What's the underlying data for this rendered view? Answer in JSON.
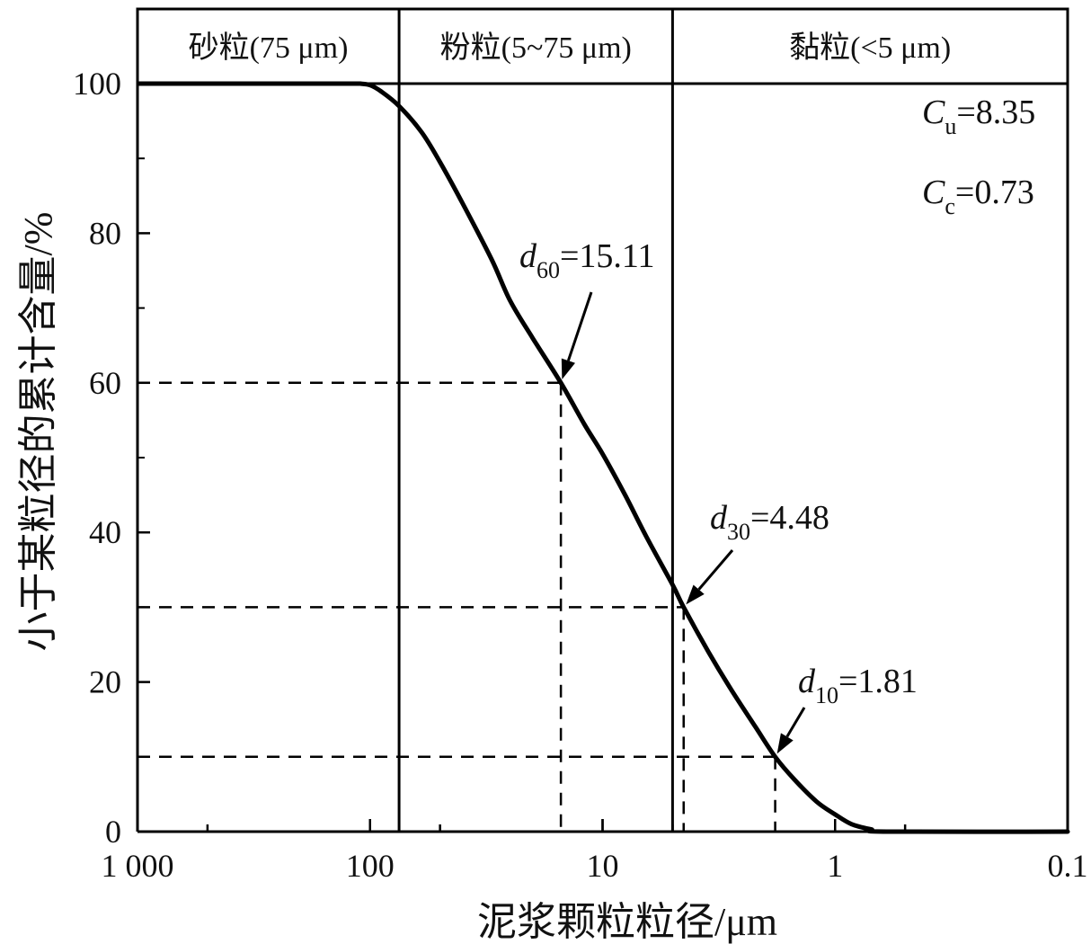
{
  "chart_data": {
    "type": "line",
    "xlabel": "泥浆颗粒粒径/μm",
    "ylabel": "小于某粒径的累计含量/%",
    "x_scale": "log-reversed",
    "xlim": [
      1000,
      0.1
    ],
    "ylim": [
      0,
      100
    ],
    "x_ticks": [
      {
        "value": 1000,
        "label": "1 000"
      },
      {
        "value": 100,
        "label": "100"
      },
      {
        "value": 10,
        "label": "10"
      },
      {
        "value": 1,
        "label": "1"
      },
      {
        "value": 0.1,
        "label": "0.1"
      }
    ],
    "y_ticks": [
      {
        "value": 0,
        "label": "0"
      },
      {
        "value": 20,
        "label": "20"
      },
      {
        "value": 40,
        "label": "40"
      },
      {
        "value": 60,
        "label": "60"
      },
      {
        "value": 80,
        "label": "80"
      },
      {
        "value": 100,
        "label": "100"
      }
    ],
    "grid": false,
    "series": [
      {
        "color": "#000000",
        "points": [
          {
            "x": 110,
            "y": 100
          },
          {
            "x": 100,
            "y": 99.8
          },
          {
            "x": 90,
            "y": 99.0
          },
          {
            "x": 75,
            "y": 97.0
          },
          {
            "x": 60,
            "y": 93.5
          },
          {
            "x": 50,
            "y": 89.5
          },
          {
            "x": 40,
            "y": 84.0
          },
          {
            "x": 30,
            "y": 76.5
          },
          {
            "x": 25,
            "y": 71.0
          },
          {
            "x": 20,
            "y": 66.0
          },
          {
            "x": 15.11,
            "y": 60.0
          },
          {
            "x": 12,
            "y": 54.5
          },
          {
            "x": 10,
            "y": 50.5
          },
          {
            "x": 8,
            "y": 45.0
          },
          {
            "x": 6.5,
            "y": 39.5
          },
          {
            "x": 5,
            "y": 33.0
          },
          {
            "x": 4.48,
            "y": 30.0
          },
          {
            "x": 3.5,
            "y": 24.0
          },
          {
            "x": 2.8,
            "y": 19.0
          },
          {
            "x": 2.2,
            "y": 14.0
          },
          {
            "x": 1.81,
            "y": 10.0
          },
          {
            "x": 1.5,
            "y": 7.0
          },
          {
            "x": 1.2,
            "y": 4.0
          },
          {
            "x": 1.0,
            "y": 2.3
          },
          {
            "x": 0.85,
            "y": 1.0
          },
          {
            "x": 0.7,
            "y": 0.3
          },
          {
            "x": 0.6,
            "y": 0.0
          },
          {
            "x": 0.1,
            "y": 0.0
          }
        ]
      }
    ],
    "zones": [
      {
        "label": "砂粒(75 μm)",
        "from": 1000,
        "to": 75
      },
      {
        "label": "粉粒(5~75 μm)",
        "from": 75,
        "to": 5
      },
      {
        "label": "黏粒(<5 μm)",
        "from": 5,
        "to": 0.1
      }
    ],
    "zone_boundaries": [
      75,
      5
    ],
    "reference_points": [
      {
        "name": "d",
        "sub": "60",
        "value_text": "=15.11",
        "x": 15.11,
        "y": 60
      },
      {
        "name": "d",
        "sub": "30",
        "value_text": "=4.48",
        "x": 4.48,
        "y": 30
      },
      {
        "name": "d",
        "sub": "10",
        "value_text": "=1.81",
        "x": 1.81,
        "y": 10
      }
    ],
    "coefficients": [
      {
        "name": "C",
        "sub": "u",
        "value_text": "=8.35"
      },
      {
        "name": "C",
        "sub": "c",
        "value_text": "=0.73"
      }
    ]
  }
}
